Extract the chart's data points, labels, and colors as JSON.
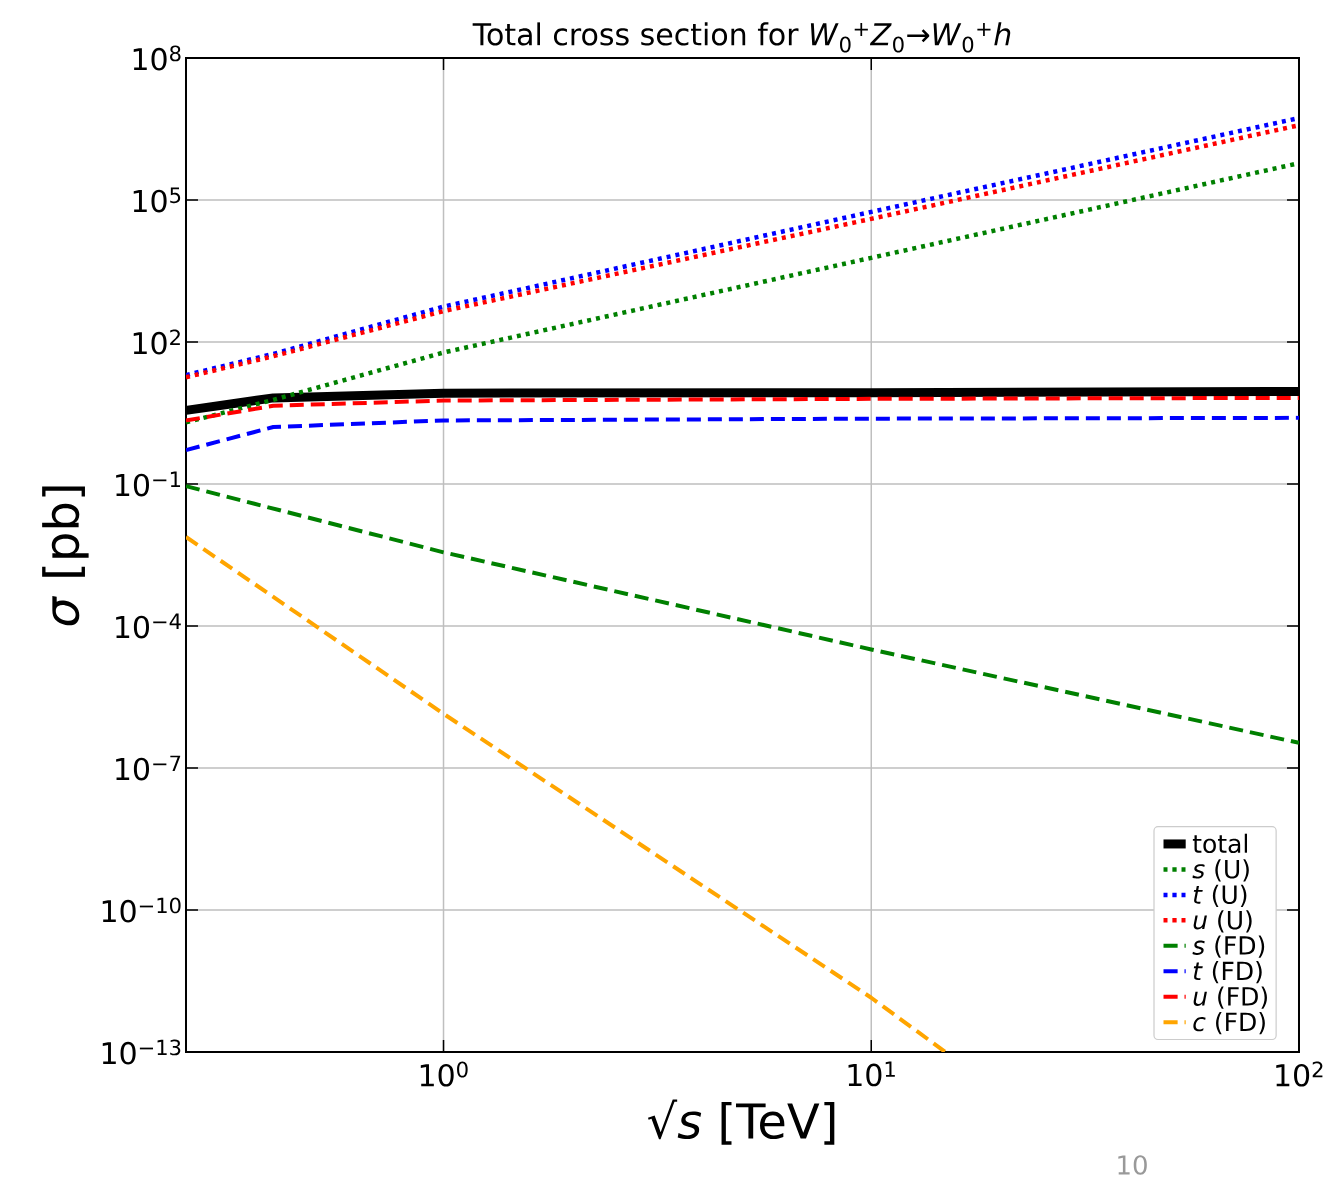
{
  "chart_data": {
    "type": "line",
    "title": "Total cross section for *W*$_{0}$$^{+}$*Z*$_{0}$→*W*$_{0}$$^{+}$*h*",
    "xlabel": "√*s* [TeV]",
    "ylabel": "*σ* [pb]",
    "log": "xy",
    "grid": true,
    "legend": "bottom right",
    "marker": "none",
    "xlim": [
      0.25,
      100
    ],
    "ylim": [
      1e-13,
      100000000.0
    ],
    "xticks": [
      {
        "value": 1,
        "label": "10$^{0}$"
      },
      {
        "value": 10,
        "label": "10$^{1}$"
      },
      {
        "value": 100,
        "label": "10$^{2}$"
      }
    ],
    "yticks": [
      {
        "value": 1e-13,
        "label": "10$^{−13}$"
      },
      {
        "value": 1e-10,
        "label": "10$^{−10}$"
      },
      {
        "value": 1e-07,
        "label": "10$^{−7}$"
      },
      {
        "value": 0.0001,
        "label": "10$^{−4}$"
      },
      {
        "value": 0.1,
        "label": "10$^{−1}$"
      },
      {
        "value": 100,
        "label": "10$^{2}$"
      },
      {
        "value": 100000.0,
        "label": "10$^{5}$"
      },
      {
        "value": 100000000.0,
        "label": "10$^{8}$"
      }
    ],
    "x": [
      0.25,
      0.4,
      1,
      10,
      100
    ],
    "series": [
      {
        "name": "total",
        "color": "#000000",
        "line_style": "solid",
        "values": [
          3.6,
          6.6,
          8.3,
          8.5,
          9
        ]
      },
      {
        "name": "*s* (U)",
        "color": "#008000",
        "line_style": "dotted",
        "values": [
          2,
          6,
          60,
          6000,
          600000
        ]
      },
      {
        "name": "*t* (U)",
        "color": "#0000ff",
        "line_style": "dotted",
        "values": [
          20,
          56,
          560,
          56000,
          5400000
        ]
      },
      {
        "name": "*u* (U)",
        "color": "#ff0000",
        "line_style": "dotted",
        "values": [
          18,
          50,
          450,
          40000,
          3800000
        ]
      },
      {
        "name": "*s* (FD)",
        "color": "#008000",
        "line_style": "dashed",
        "x": [
          0.25,
          1,
          10,
          100
        ],
        "values": [
          0.09,
          0.0036,
          3.2e-05,
          3.4e-07
        ]
      },
      {
        "name": "*t* (FD)",
        "color": "#0000ff",
        "line_style": "dashed",
        "values": [
          0.52,
          1.6,
          2.2,
          2.4,
          2.5
        ]
      },
      {
        "name": "*u* (FD)",
        "color": "#ff0000",
        "line_style": "dashed",
        "values": [
          2.2,
          4.5,
          5.8,
          6.3,
          6.6
        ]
      },
      {
        "name": "*c* (FD)",
        "color": "#ffa500",
        "line_style": "dashed",
        "x": [
          0.25,
          1,
          10,
          14.9
        ],
        "values": [
          0.0076,
          1.4e-06,
          1.4e-12,
          1e-13
        ]
      }
    ],
    "annotations": [
      "10"
    ]
  }
}
